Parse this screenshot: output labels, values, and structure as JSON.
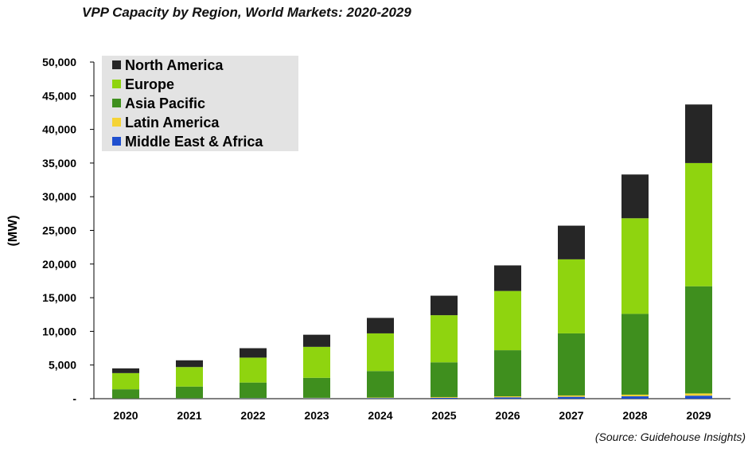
{
  "chart_data": {
    "type": "bar",
    "stacked": true,
    "title": "VPP Capacity by Region, World Markets: 2020-2029",
    "source": "(Source: Guidehouse Insights)",
    "xlabel": "",
    "ylabel": "(MW)",
    "ylim": [
      0,
      50000
    ],
    "yticks": [
      "-",
      "5,000",
      "10,000",
      "15,000",
      "20,000",
      "25,000",
      "30,000",
      "35,000",
      "40,000",
      "45,000",
      "50,000"
    ],
    "grid": false,
    "legend_position": "top-left",
    "categories": [
      "2020",
      "2021",
      "2022",
      "2023",
      "2024",
      "2025",
      "2026",
      "2027",
      "2028",
      "2029"
    ],
    "series": [
      {
        "name": "Middle East & Africa",
        "color": "#1f4fcf",
        "values": [
          30,
          40,
          50,
          70,
          90,
          130,
          200,
          280,
          350,
          450
        ]
      },
      {
        "name": "Latin America",
        "color": "#f5d335",
        "values": [
          20,
          30,
          40,
          60,
          80,
          110,
          150,
          200,
          250,
          330
        ]
      },
      {
        "name": "Asia Pacific",
        "color": "#3f8f1e",
        "values": [
          1350,
          1730,
          2310,
          2970,
          3930,
          5160,
          6850,
          9220,
          12000,
          15920
        ]
      },
      {
        "name": "Europe",
        "color": "#8fd40f",
        "values": [
          2400,
          2900,
          3700,
          4600,
          5600,
          7000,
          8800,
          11000,
          14200,
          18300
        ]
      },
      {
        "name": "North America",
        "color": "#262626",
        "values": [
          700,
          1000,
          1400,
          1800,
          2300,
          2900,
          3800,
          5000,
          6500,
          8700
        ]
      }
    ]
  }
}
